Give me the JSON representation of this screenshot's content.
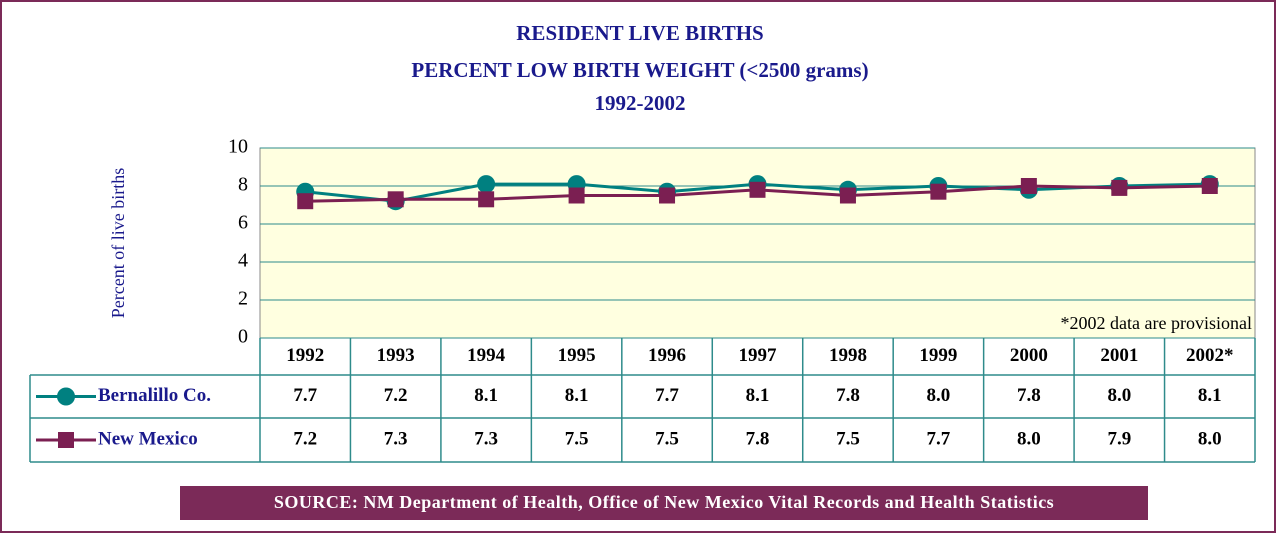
{
  "chart_data": {
    "type": "line",
    "title": [
      "RESIDENT LIVE BIRTHS",
      "PERCENT LOW BIRTH WEIGHT (<2500 grams)",
      "1992-2002"
    ],
    "y_label": "Percent of live births",
    "annotation": "*2002 data are provisional",
    "source": "SOURCE: NM Department of Health, Office of New Mexico Vital Records and  Health Statistics",
    "categories": [
      "1992",
      "1993",
      "1994",
      "1995",
      "1996",
      "1997",
      "1998",
      "1999",
      "2000",
      "2001",
      "2002*"
    ],
    "series": [
      {
        "name": "Bernalillo Co.",
        "color": "#008080",
        "marker": "circle",
        "values": [
          7.7,
          7.2,
          8.1,
          8.1,
          7.7,
          8.1,
          7.8,
          8.0,
          7.8,
          8.0,
          8.1
        ],
        "value_labels": [
          "7.7",
          "7.2",
          "8.1",
          "8.1",
          "7.7",
          "8.1",
          "7.8",
          "8.0",
          "7.8",
          "8.0",
          "8.1"
        ]
      },
      {
        "name": "New Mexico",
        "color": "#7b1f52",
        "marker": "square",
        "values": [
          7.2,
          7.3,
          7.3,
          7.5,
          7.5,
          7.8,
          7.5,
          7.7,
          8.0,
          7.9,
          8.0
        ],
        "value_labels": [
          "7.2",
          "7.3",
          "7.3",
          "7.5",
          "7.5",
          "7.8",
          "7.5",
          "7.7",
          "8.0",
          "7.9",
          "8.0"
        ]
      }
    ],
    "ylim": [
      0,
      10
    ],
    "yticks": [
      0,
      2,
      4,
      6,
      8,
      10
    ],
    "grid": true
  }
}
